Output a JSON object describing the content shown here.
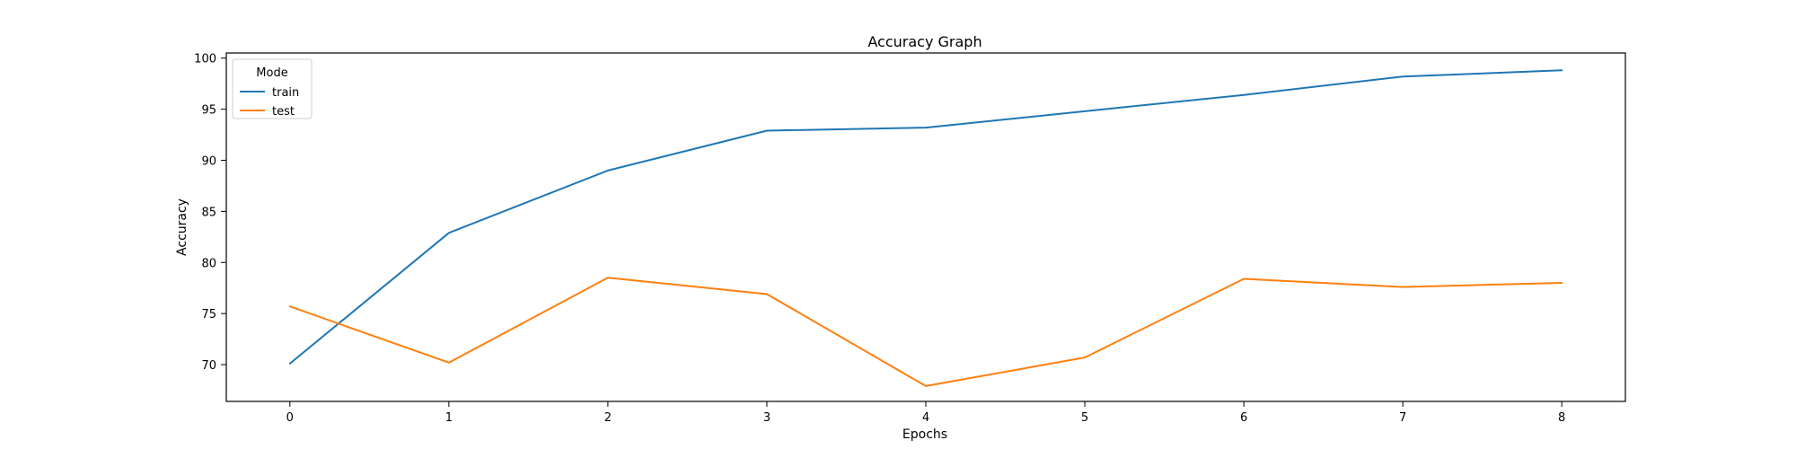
{
  "chart_data": {
    "type": "line",
    "title": "Accuracy Graph",
    "xlabel": "Epochs",
    "ylabel": "Accuracy",
    "x": [
      0,
      1,
      2,
      3,
      4,
      5,
      6,
      7,
      8
    ],
    "xlim": [
      -0.4,
      8.4
    ],
    "ylim": [
      66.4,
      100.5
    ],
    "x_ticks": [
      0,
      1,
      2,
      3,
      4,
      5,
      6,
      7,
      8
    ],
    "y_ticks": [
      70,
      75,
      80,
      85,
      90,
      95,
      100
    ],
    "grid": false,
    "legend": {
      "title": "Mode",
      "position": "top-left"
    },
    "series": [
      {
        "name": "train",
        "color": "#1f77b4",
        "values": [
          70.1,
          82.9,
          89.0,
          92.9,
          93.2,
          94.8,
          96.4,
          98.2,
          98.8
        ]
      },
      {
        "name": "test",
        "color": "#ff7f0e",
        "values": [
          75.7,
          70.2,
          78.5,
          76.9,
          67.9,
          70.7,
          78.4,
          77.6,
          78.0
        ]
      }
    ]
  }
}
